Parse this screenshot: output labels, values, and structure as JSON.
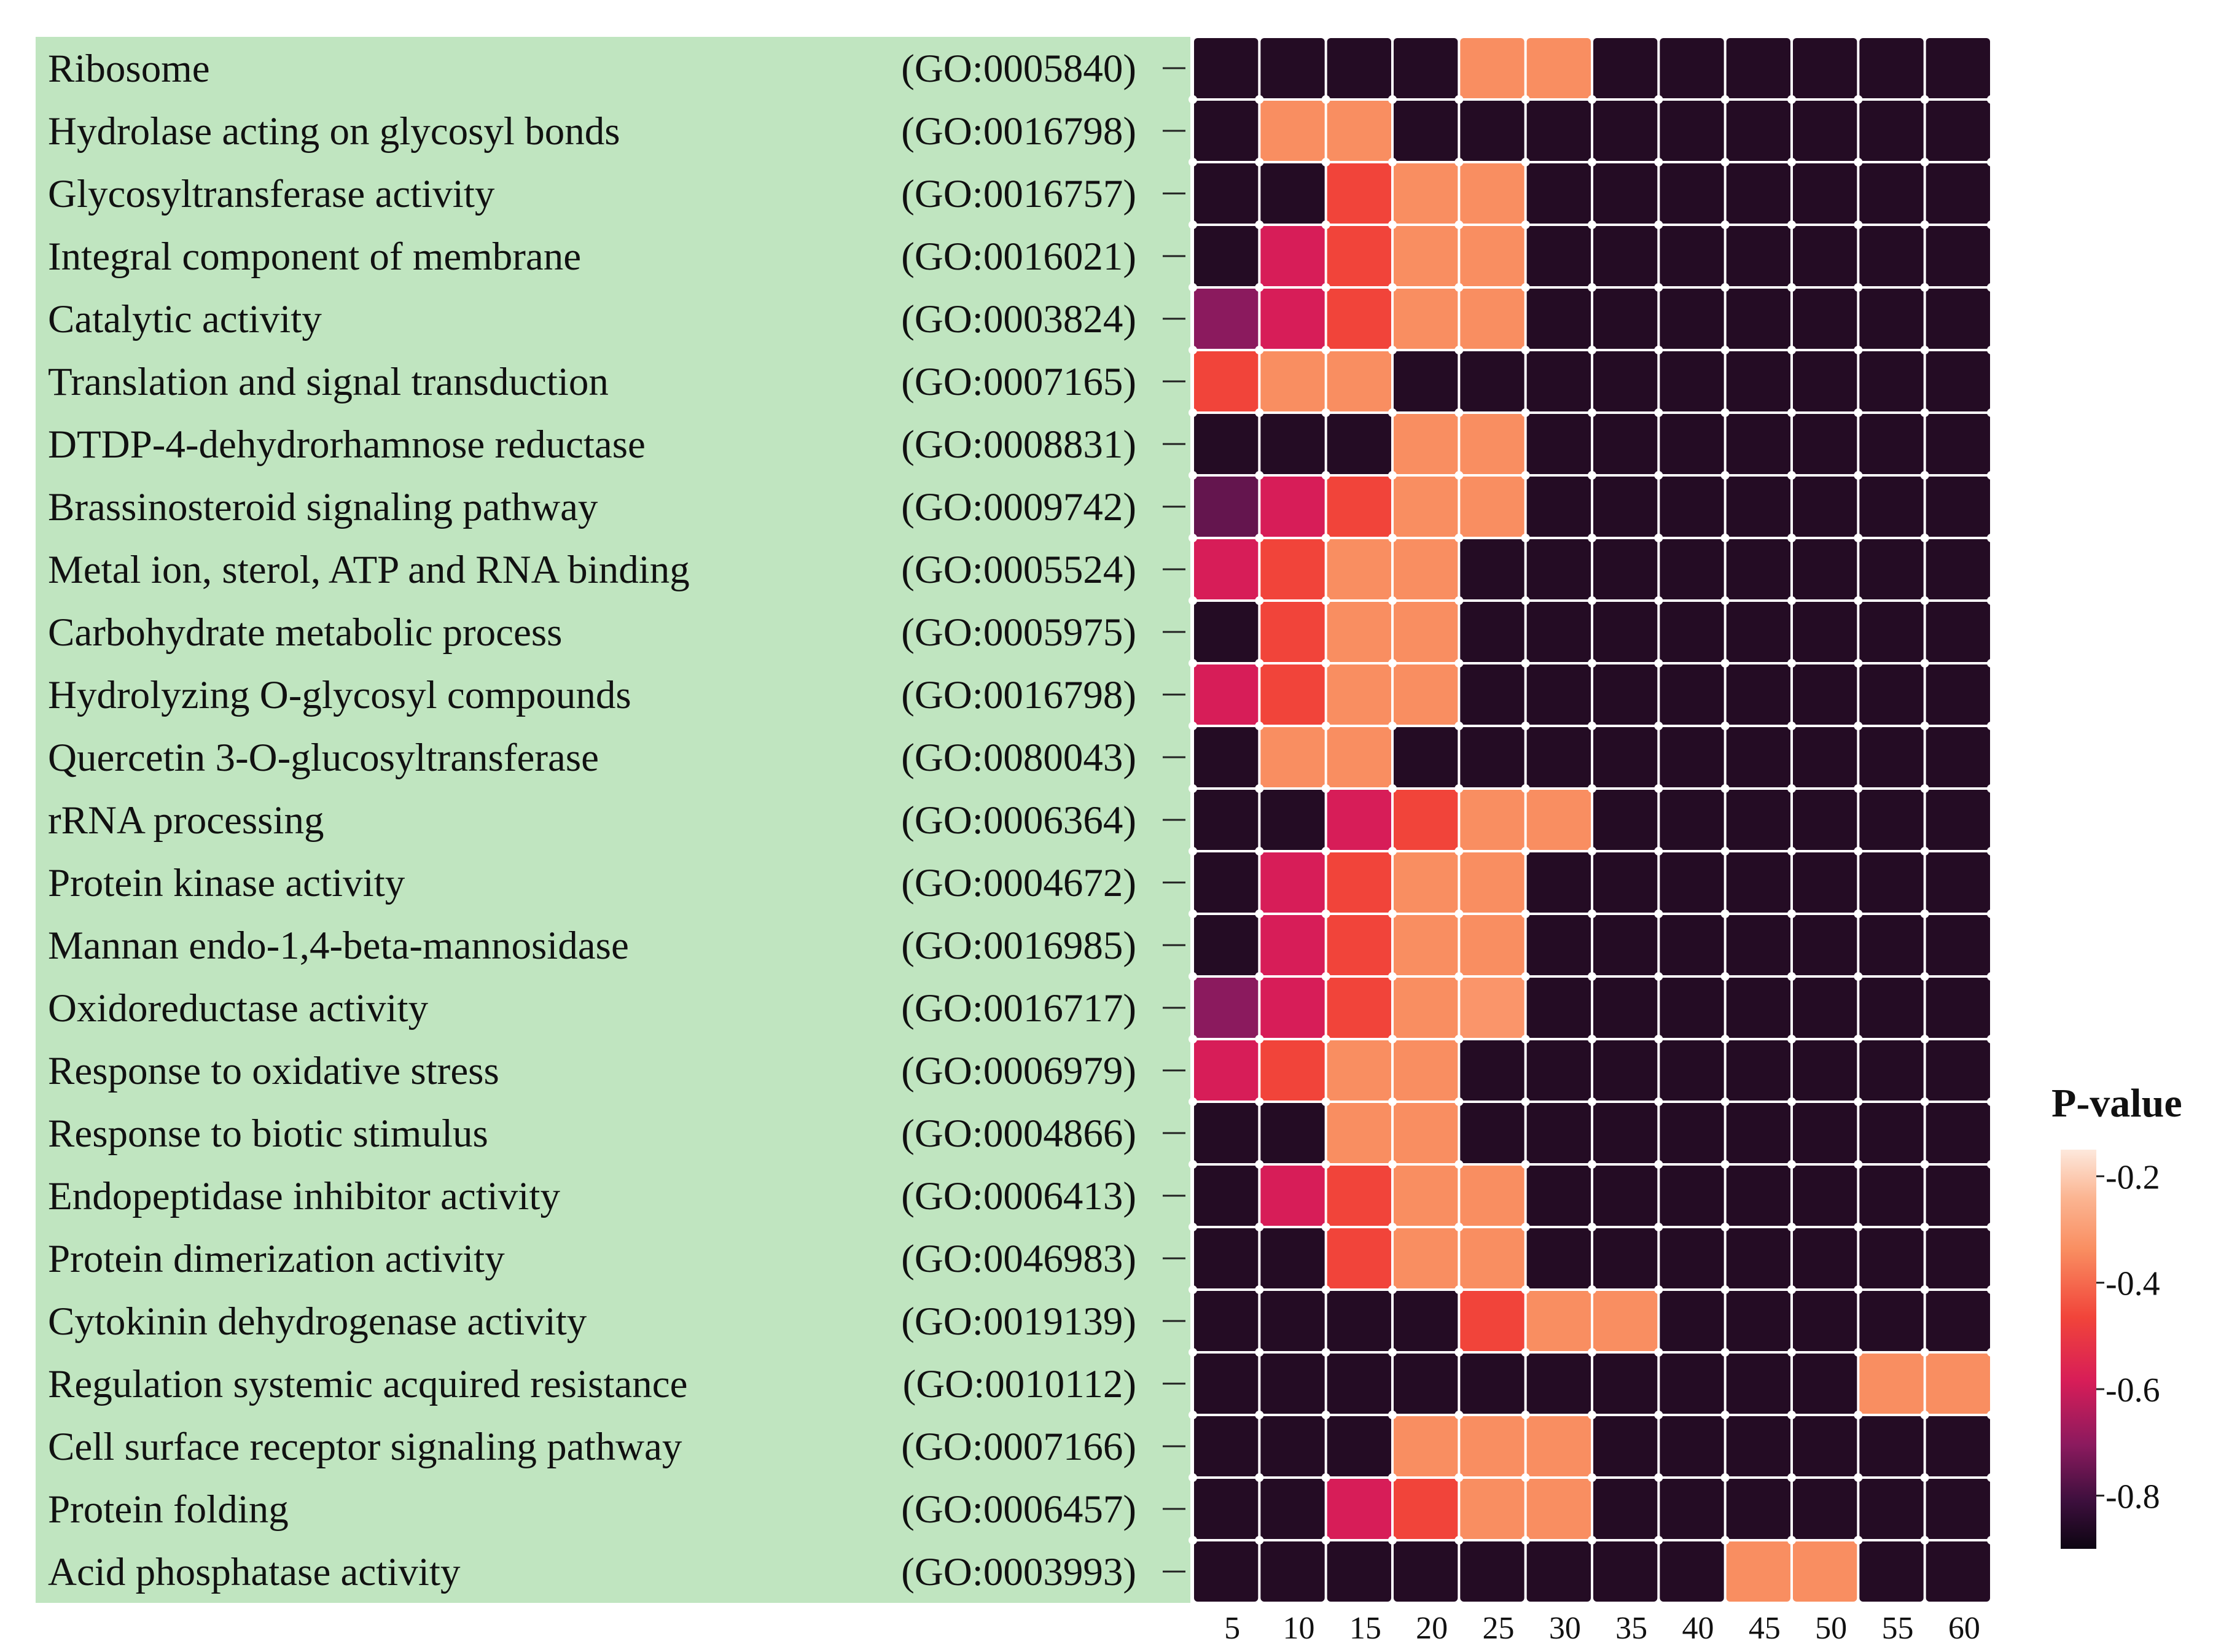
{
  "chart_data": {
    "type": "heatmap",
    "title": "",
    "xlabel": "",
    "ylabel": "",
    "x": [
      5,
      10,
      15,
      20,
      25,
      30,
      35,
      40,
      45,
      50,
      55,
      60
    ],
    "rows": [
      {
        "term": "Ribosome",
        "go": "(GO:0005840)",
        "values": [
          -0.9,
          -0.9,
          -0.9,
          -0.9,
          -0.3,
          -0.3,
          -0.9,
          -0.9,
          -0.9,
          -0.9,
          -0.9,
          -0.9
        ]
      },
      {
        "term": "Hydrolase acting on glycosyl bonds",
        "go": "(GO:0016798)",
        "values": [
          -0.9,
          -0.3,
          -0.3,
          -0.9,
          -0.9,
          -0.9,
          -0.9,
          -0.9,
          -0.9,
          -0.9,
          -0.9,
          -0.9
        ]
      },
      {
        "term": "Glycosyltransferase activity",
        "go": "(GO:0016757)",
        "values": [
          -0.9,
          -0.9,
          -0.45,
          -0.3,
          -0.3,
          -0.9,
          -0.9,
          -0.9,
          -0.9,
          -0.9,
          -0.9,
          -0.9
        ]
      },
      {
        "term": "Integral component of membrane",
        "go": "(GO:0016021)",
        "values": [
          -0.9,
          -0.55,
          -0.45,
          -0.3,
          -0.3,
          -0.9,
          -0.9,
          -0.9,
          -0.9,
          -0.9,
          -0.9,
          -0.9
        ]
      },
      {
        "term": "Catalytic activity",
        "go": "(GO:0003824)",
        "values": [
          -0.7,
          -0.55,
          -0.45,
          -0.3,
          -0.3,
          -0.9,
          -0.9,
          -0.9,
          -0.9,
          -0.9,
          -0.9,
          -0.9
        ]
      },
      {
        "term": "Translation and signal transduction",
        "go": "(GO:0007165)",
        "values": [
          -0.45,
          -0.3,
          -0.3,
          -0.9,
          -0.9,
          -0.9,
          -0.9,
          -0.9,
          -0.9,
          -0.9,
          -0.9,
          -0.9
        ]
      },
      {
        "term": "DTDP-4-dehydrorhamnose reductase",
        "go": "(GO:0008831)",
        "values": [
          -0.9,
          -0.9,
          -0.9,
          -0.3,
          -0.3,
          -0.9,
          -0.9,
          -0.9,
          -0.9,
          -0.9,
          -0.9,
          -0.9
        ]
      },
      {
        "term": "Brassinosteroid signaling pathway",
        "go": "(GO:0009742)",
        "values": [
          -0.75,
          -0.55,
          -0.45,
          -0.3,
          -0.3,
          -0.9,
          -0.9,
          -0.9,
          -0.9,
          -0.9,
          -0.9,
          -0.9
        ]
      },
      {
        "term": "Metal ion, sterol, ATP and RNA binding",
        "go": "(GO:0005524)",
        "values": [
          -0.55,
          -0.45,
          -0.3,
          -0.3,
          -0.9,
          -0.9,
          -0.9,
          -0.9,
          -0.9,
          -0.9,
          -0.9,
          -0.9
        ]
      },
      {
        "term": "Carbohydrate metabolic process",
        "go": "(GO:0005975)",
        "values": [
          -0.9,
          -0.45,
          -0.3,
          -0.3,
          -0.9,
          -0.9,
          -0.9,
          -0.9,
          -0.9,
          -0.9,
          -0.9,
          -0.9
        ]
      },
      {
        "term": "Hydrolyzing O-glycosyl compounds",
        "go": "(GO:0016798)",
        "values": [
          -0.55,
          -0.45,
          -0.3,
          -0.3,
          -0.9,
          -0.9,
          -0.9,
          -0.9,
          -0.9,
          -0.9,
          -0.9,
          -0.9
        ]
      },
      {
        "term": "Quercetin 3-O-glucosyltransferase",
        "go": "(GO:0080043)",
        "values": [
          -0.9,
          -0.3,
          -0.3,
          -0.9,
          -0.9,
          -0.9,
          -0.9,
          -0.9,
          -0.9,
          -0.9,
          -0.9,
          -0.9
        ]
      },
      {
        "term": "rRNA processing",
        "go": "(GO:0006364)",
        "values": [
          -0.9,
          -0.9,
          -0.55,
          -0.45,
          -0.3,
          -0.3,
          -0.9,
          -0.9,
          -0.9,
          -0.9,
          -0.9,
          -0.9
        ]
      },
      {
        "term": "Protein kinase activity",
        "go": "(GO:0004672)",
        "values": [
          -0.9,
          -0.55,
          -0.45,
          -0.3,
          -0.3,
          -0.9,
          -0.9,
          -0.9,
          -0.9,
          -0.9,
          -0.9,
          -0.9
        ]
      },
      {
        "term": "Mannan endo-1,4-beta-mannosidase",
        "go": "(GO:0016985)",
        "values": [
          -0.9,
          -0.55,
          -0.45,
          -0.3,
          -0.3,
          -0.9,
          -0.9,
          -0.9,
          -0.9,
          -0.9,
          -0.9,
          -0.9
        ]
      },
      {
        "term": "Oxidoreductase activity",
        "go": "(GO:0016717)",
        "values": [
          -0.7,
          -0.55,
          -0.45,
          -0.3,
          -0.28,
          -0.9,
          -0.9,
          -0.9,
          -0.9,
          -0.9,
          -0.9,
          -0.9
        ]
      },
      {
        "term": "Response to oxidative stress",
        "go": "(GO:0006979)",
        "values": [
          -0.55,
          -0.45,
          -0.3,
          -0.3,
          -0.9,
          -0.9,
          -0.9,
          -0.9,
          -0.9,
          -0.9,
          -0.9,
          -0.9
        ]
      },
      {
        "term": "Response to biotic stimulus",
        "go": "(GO:0004866)",
        "values": [
          -0.9,
          -0.9,
          -0.3,
          -0.3,
          -0.9,
          -0.9,
          -0.9,
          -0.9,
          -0.9,
          -0.9,
          -0.9,
          -0.9
        ]
      },
      {
        "term": "Endopeptidase inhibitor activity",
        "go": "(GO:0006413)",
        "values": [
          -0.9,
          -0.55,
          -0.45,
          -0.3,
          -0.3,
          -0.9,
          -0.9,
          -0.9,
          -0.9,
          -0.9,
          -0.9,
          -0.9
        ]
      },
      {
        "term": "Protein dimerization activity",
        "go": "(GO:0046983)",
        "values": [
          -0.9,
          -0.9,
          -0.45,
          -0.3,
          -0.3,
          -0.9,
          -0.9,
          -0.9,
          -0.9,
          -0.9,
          -0.9,
          -0.9
        ]
      },
      {
        "term": "Cytokinin dehydrogenase activity",
        "go": "(GO:0019139)",
        "values": [
          -0.9,
          -0.9,
          -0.9,
          -0.9,
          -0.45,
          -0.3,
          -0.3,
          -0.9,
          -0.9,
          -0.9,
          -0.9,
          -0.9
        ]
      },
      {
        "term": "Regulation systemic acquired resistance",
        "go": "(GO:0010112)",
        "values": [
          -0.9,
          -0.9,
          -0.9,
          -0.9,
          -0.9,
          -0.9,
          -0.9,
          -0.9,
          -0.9,
          -0.9,
          -0.3,
          -0.3
        ]
      },
      {
        "term": "Cell surface receptor signaling pathway",
        "go": "(GO:0007166)",
        "values": [
          -0.9,
          -0.9,
          -0.9,
          -0.3,
          -0.3,
          -0.3,
          -0.9,
          -0.9,
          -0.9,
          -0.9,
          -0.9,
          -0.9
        ]
      },
      {
        "term": "Protein folding",
        "go": "(GO:0006457)",
        "values": [
          -0.9,
          -0.9,
          -0.55,
          -0.45,
          -0.3,
          -0.3,
          -0.9,
          -0.9,
          -0.9,
          -0.9,
          -0.9,
          -0.9
        ]
      },
      {
        "term": "Acid phosphatase activity",
        "go": "(GO:0003993)",
        "values": [
          -0.9,
          -0.9,
          -0.9,
          -0.9,
          -0.9,
          -0.9,
          -0.9,
          -0.9,
          -0.3,
          -0.3,
          -0.9,
          -0.9
        ]
      }
    ],
    "legend": {
      "title": "P-value",
      "ticks": [
        -0.2,
        -0.4,
        -0.6,
        -0.8
      ],
      "tick_labels": [
        "-0.2",
        "-0.4",
        "-0.6",
        "-0.8"
      ],
      "range": [
        -0.9,
        -0.15
      ],
      "position": "right"
    },
    "colors": {
      "label_panel": "#c0e5c0",
      "grid_line": "#ffffff",
      "scale": [
        "#fde8dc",
        "#f98e61",
        "#f1443a",
        "#d71d58",
        "#8b1a5e",
        "#3d0f3d",
        "#1a0a1f"
      ]
    }
  }
}
